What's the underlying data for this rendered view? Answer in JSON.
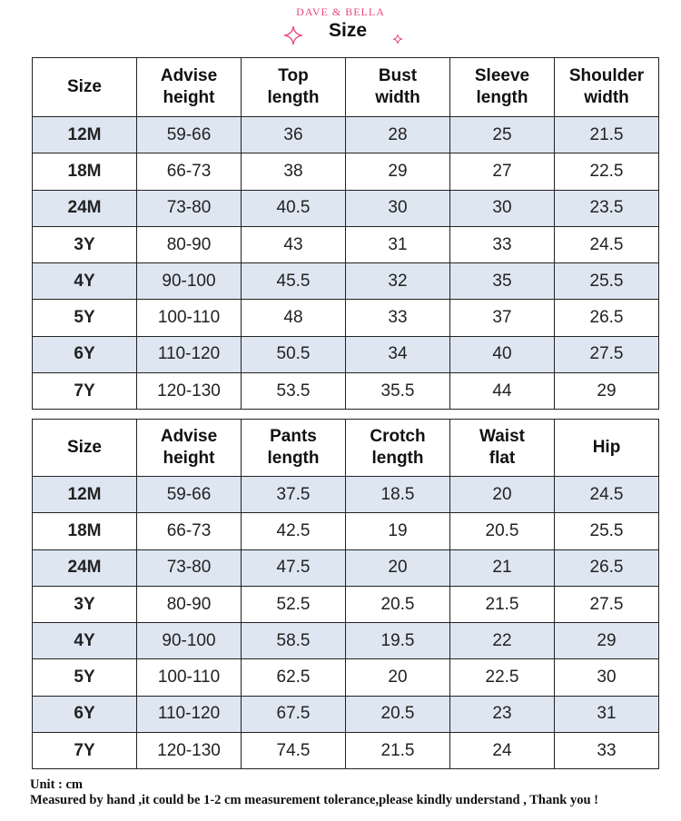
{
  "header": {
    "brand": "DAVE & BELLA",
    "title": "Size",
    "accent_color": "#e8487a"
  },
  "top_table": {
    "columns": [
      {
        "line1": "Size",
        "line2": ""
      },
      {
        "line1": "Advise",
        "line2": "height"
      },
      {
        "line1": "Top",
        "line2": "length"
      },
      {
        "line1": "Bust",
        "line2": "width"
      },
      {
        "line1": "Sleeve",
        "line2": "length"
      },
      {
        "line1": "Shoulder",
        "line2": "width"
      }
    ],
    "rows": [
      [
        "12M",
        "59-66",
        "36",
        "28",
        "25",
        "21.5"
      ],
      [
        "18M",
        "66-73",
        "38",
        "29",
        "27",
        "22.5"
      ],
      [
        "24M",
        "73-80",
        "40.5",
        "30",
        "30",
        "23.5"
      ],
      [
        "3Y",
        "80-90",
        "43",
        "31",
        "33",
        "24.5"
      ],
      [
        "4Y",
        "90-100",
        "45.5",
        "32",
        "35",
        "25.5"
      ],
      [
        "5Y",
        "100-110",
        "48",
        "33",
        "37",
        "26.5"
      ],
      [
        "6Y",
        "110-120",
        "50.5",
        "34",
        "40",
        "27.5"
      ],
      [
        "7Y",
        "120-130",
        "53.5",
        "35.5",
        "44",
        "29"
      ]
    ]
  },
  "bottom_table": {
    "columns": [
      {
        "line1": "Size",
        "line2": ""
      },
      {
        "line1": "Advise",
        "line2": "height"
      },
      {
        "line1": "Pants",
        "line2": "length"
      },
      {
        "line1": "Crotch",
        "line2": "length"
      },
      {
        "line1": "Waist",
        "line2": "flat"
      },
      {
        "line1": "Hip",
        "line2": ""
      }
    ],
    "rows": [
      [
        "12M",
        "59-66",
        "37.5",
        "18.5",
        "20",
        "24.5"
      ],
      [
        "18M",
        "66-73",
        "42.5",
        "19",
        "20.5",
        "25.5"
      ],
      [
        "24M",
        "73-80",
        "47.5",
        "20",
        "21",
        "26.5"
      ],
      [
        "3Y",
        "80-90",
        "52.5",
        "20.5",
        "21.5",
        "27.5"
      ],
      [
        "4Y",
        "90-100",
        "58.5",
        "19.5",
        "22",
        "29"
      ],
      [
        "5Y",
        "100-110",
        "62.5",
        "20",
        "22.5",
        "30"
      ],
      [
        "6Y",
        "110-120",
        "67.5",
        "20.5",
        "23",
        "31"
      ],
      [
        "7Y",
        "120-130",
        "74.5",
        "21.5",
        "24",
        "33"
      ]
    ]
  },
  "colors": {
    "shaded_row": "#dde6f1",
    "border": "#222222"
  },
  "notes": {
    "unit": "Unit : cm",
    "tolerance": "Measured by hand ,it could be 1-2 cm measurement tolerance,please kindly understand , Thank you !"
  }
}
